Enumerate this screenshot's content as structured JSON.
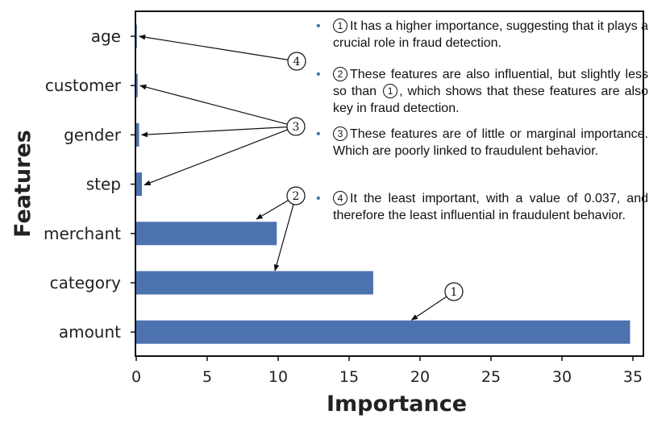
{
  "chart_data": {
    "type": "bar",
    "orientation": "horizontal",
    "xlabel": "Importance",
    "ylabel": "Features",
    "xlim": [
      0,
      36
    ],
    "xticks": [
      "0",
      "5",
      "10",
      "15",
      "20",
      "25",
      "30",
      "35"
    ],
    "categories": [
      "age",
      "customer",
      "gender",
      "step",
      "merchant",
      "category",
      "amount"
    ],
    "values": [
      0.037,
      0.1,
      0.2,
      0.4,
      9.9,
      16.7,
      34.8
    ],
    "bar_color": "#4c72b0",
    "grid": false,
    "callouts": [
      {
        "marker": "1",
        "targets": [
          "amount"
        ]
      },
      {
        "marker": "2",
        "targets": [
          "merchant",
          "category"
        ]
      },
      {
        "marker": "3",
        "targets": [
          "customer",
          "gender",
          "step"
        ]
      },
      {
        "marker": "4",
        "targets": [
          "age"
        ]
      }
    ],
    "annotations": [
      {
        "marker": "1",
        "text_before": "It has a higher importance, suggesting that it plays a crucial role in fraud detection.",
        "inline_marker": "",
        "text_after": ""
      },
      {
        "marker": "2",
        "text_before": "These features are also influential, but slightly less so than",
        "inline_marker": "1",
        "text_after": ", which shows that these features are also key in fraud detection."
      },
      {
        "marker": "3",
        "text_before": "These features are of little or marginal importance. Which are poorly linked to fraudulent behavior.",
        "inline_marker": "",
        "text_after": ""
      },
      {
        "marker": "4",
        "text_before": "It the least important, with a value of 0.037, and therefore the least influential in fraudulent behavior.",
        "inline_marker": "",
        "text_after": ""
      }
    ]
  }
}
